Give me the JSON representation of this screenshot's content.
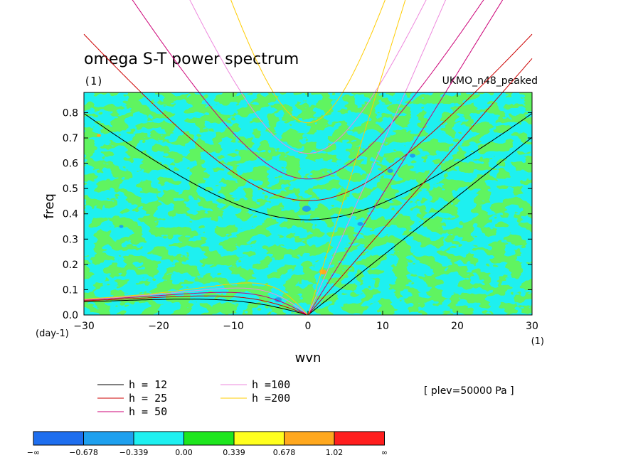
{
  "chart_data": {
    "type": "heatmap",
    "title": "omega S-T power spectrum",
    "units_label": "(1)",
    "model_label": "UKMO_n48_peaked",
    "xlabel": "wvn",
    "ylabel": "freq",
    "x_units": "(1)",
    "y_units": "(day-1)",
    "xlim": [
      -30,
      30
    ],
    "ylim": [
      0.0,
      0.88
    ],
    "xticks": [
      "−30",
      "−20",
      "−10",
      "0",
      "10",
      "20",
      "30"
    ],
    "yticks": [
      "0.0",
      "0.1",
      "0.2",
      "0.3",
      "0.4",
      "0.5",
      "0.6",
      "0.7",
      "0.8"
    ],
    "level_text": "[ plev=50000 Pa ]",
    "dispersion_curves": [
      {
        "label": "h = 12",
        "h": 12,
        "color": "#000000"
      },
      {
        "label": "h = 25",
        "h": 25,
        "color": "#cc0000"
      },
      {
        "label": "h = 50",
        "h": 50,
        "color": "#cc0077"
      },
      {
        "label": "h =100",
        "h": 100,
        "color": "#ee88dd"
      },
      {
        "label": "h =200",
        "h": 200,
        "color": "#ffcc00"
      }
    ],
    "colorbar": {
      "labels": [
        "−∞",
        "−0.678",
        "−0.339",
        "0.00",
        "0.339",
        "0.678",
        "1.02",
        "∞"
      ],
      "colors": [
        "#1e6eee",
        "#1ea0ee",
        "#1ef0f0",
        "#1ee61e",
        "#ffff1e",
        "#ffa81e",
        "#ff1e1e"
      ]
    },
    "field_colors": {
      "background": "#1ef0f0",
      "patch": "#1ee61e",
      "dark_spot": "#1ea0ee",
      "hot_spot": "#ffa81e"
    }
  }
}
